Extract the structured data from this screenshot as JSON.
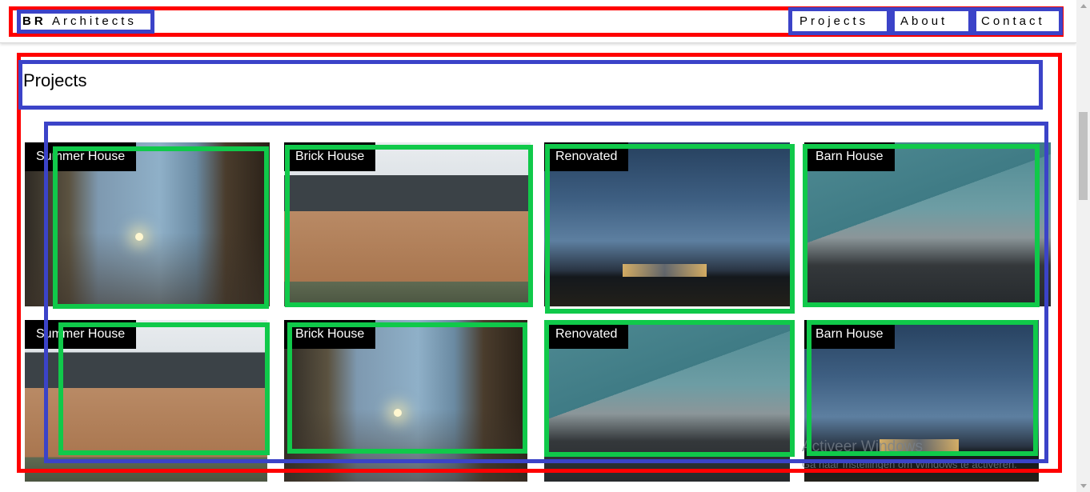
{
  "navbar": {
    "brand_bold": "BR",
    "brand_rest": " Architects",
    "links": [
      "Projects",
      "About",
      "Contact"
    ]
  },
  "content": {
    "title": "Projects",
    "projects": [
      {
        "label": "Summer House",
        "image": "summer-house-image"
      },
      {
        "label": "Brick House",
        "image": "brick-house-image"
      },
      {
        "label": "Renovated",
        "image": "renovated-house-image"
      },
      {
        "label": "Barn House",
        "image": "barn-house-image"
      },
      {
        "label": "Summer House",
        "image": "brick-house-image"
      },
      {
        "label": "Brick House",
        "image": "summer-house-image"
      },
      {
        "label": "Renovated",
        "image": "barn-house-image"
      },
      {
        "label": "Barn House",
        "image": "renovated-house-image"
      }
    ]
  },
  "watermark": {
    "line1": "Activeer Windows",
    "line2": "Ga naar Instellingen om Windows te activeren."
  },
  "colors": {
    "annotation_red": "#ff0000",
    "annotation_blue": "#3b43c8",
    "annotation_green": "#10c94a",
    "label_bg": "#000000"
  }
}
